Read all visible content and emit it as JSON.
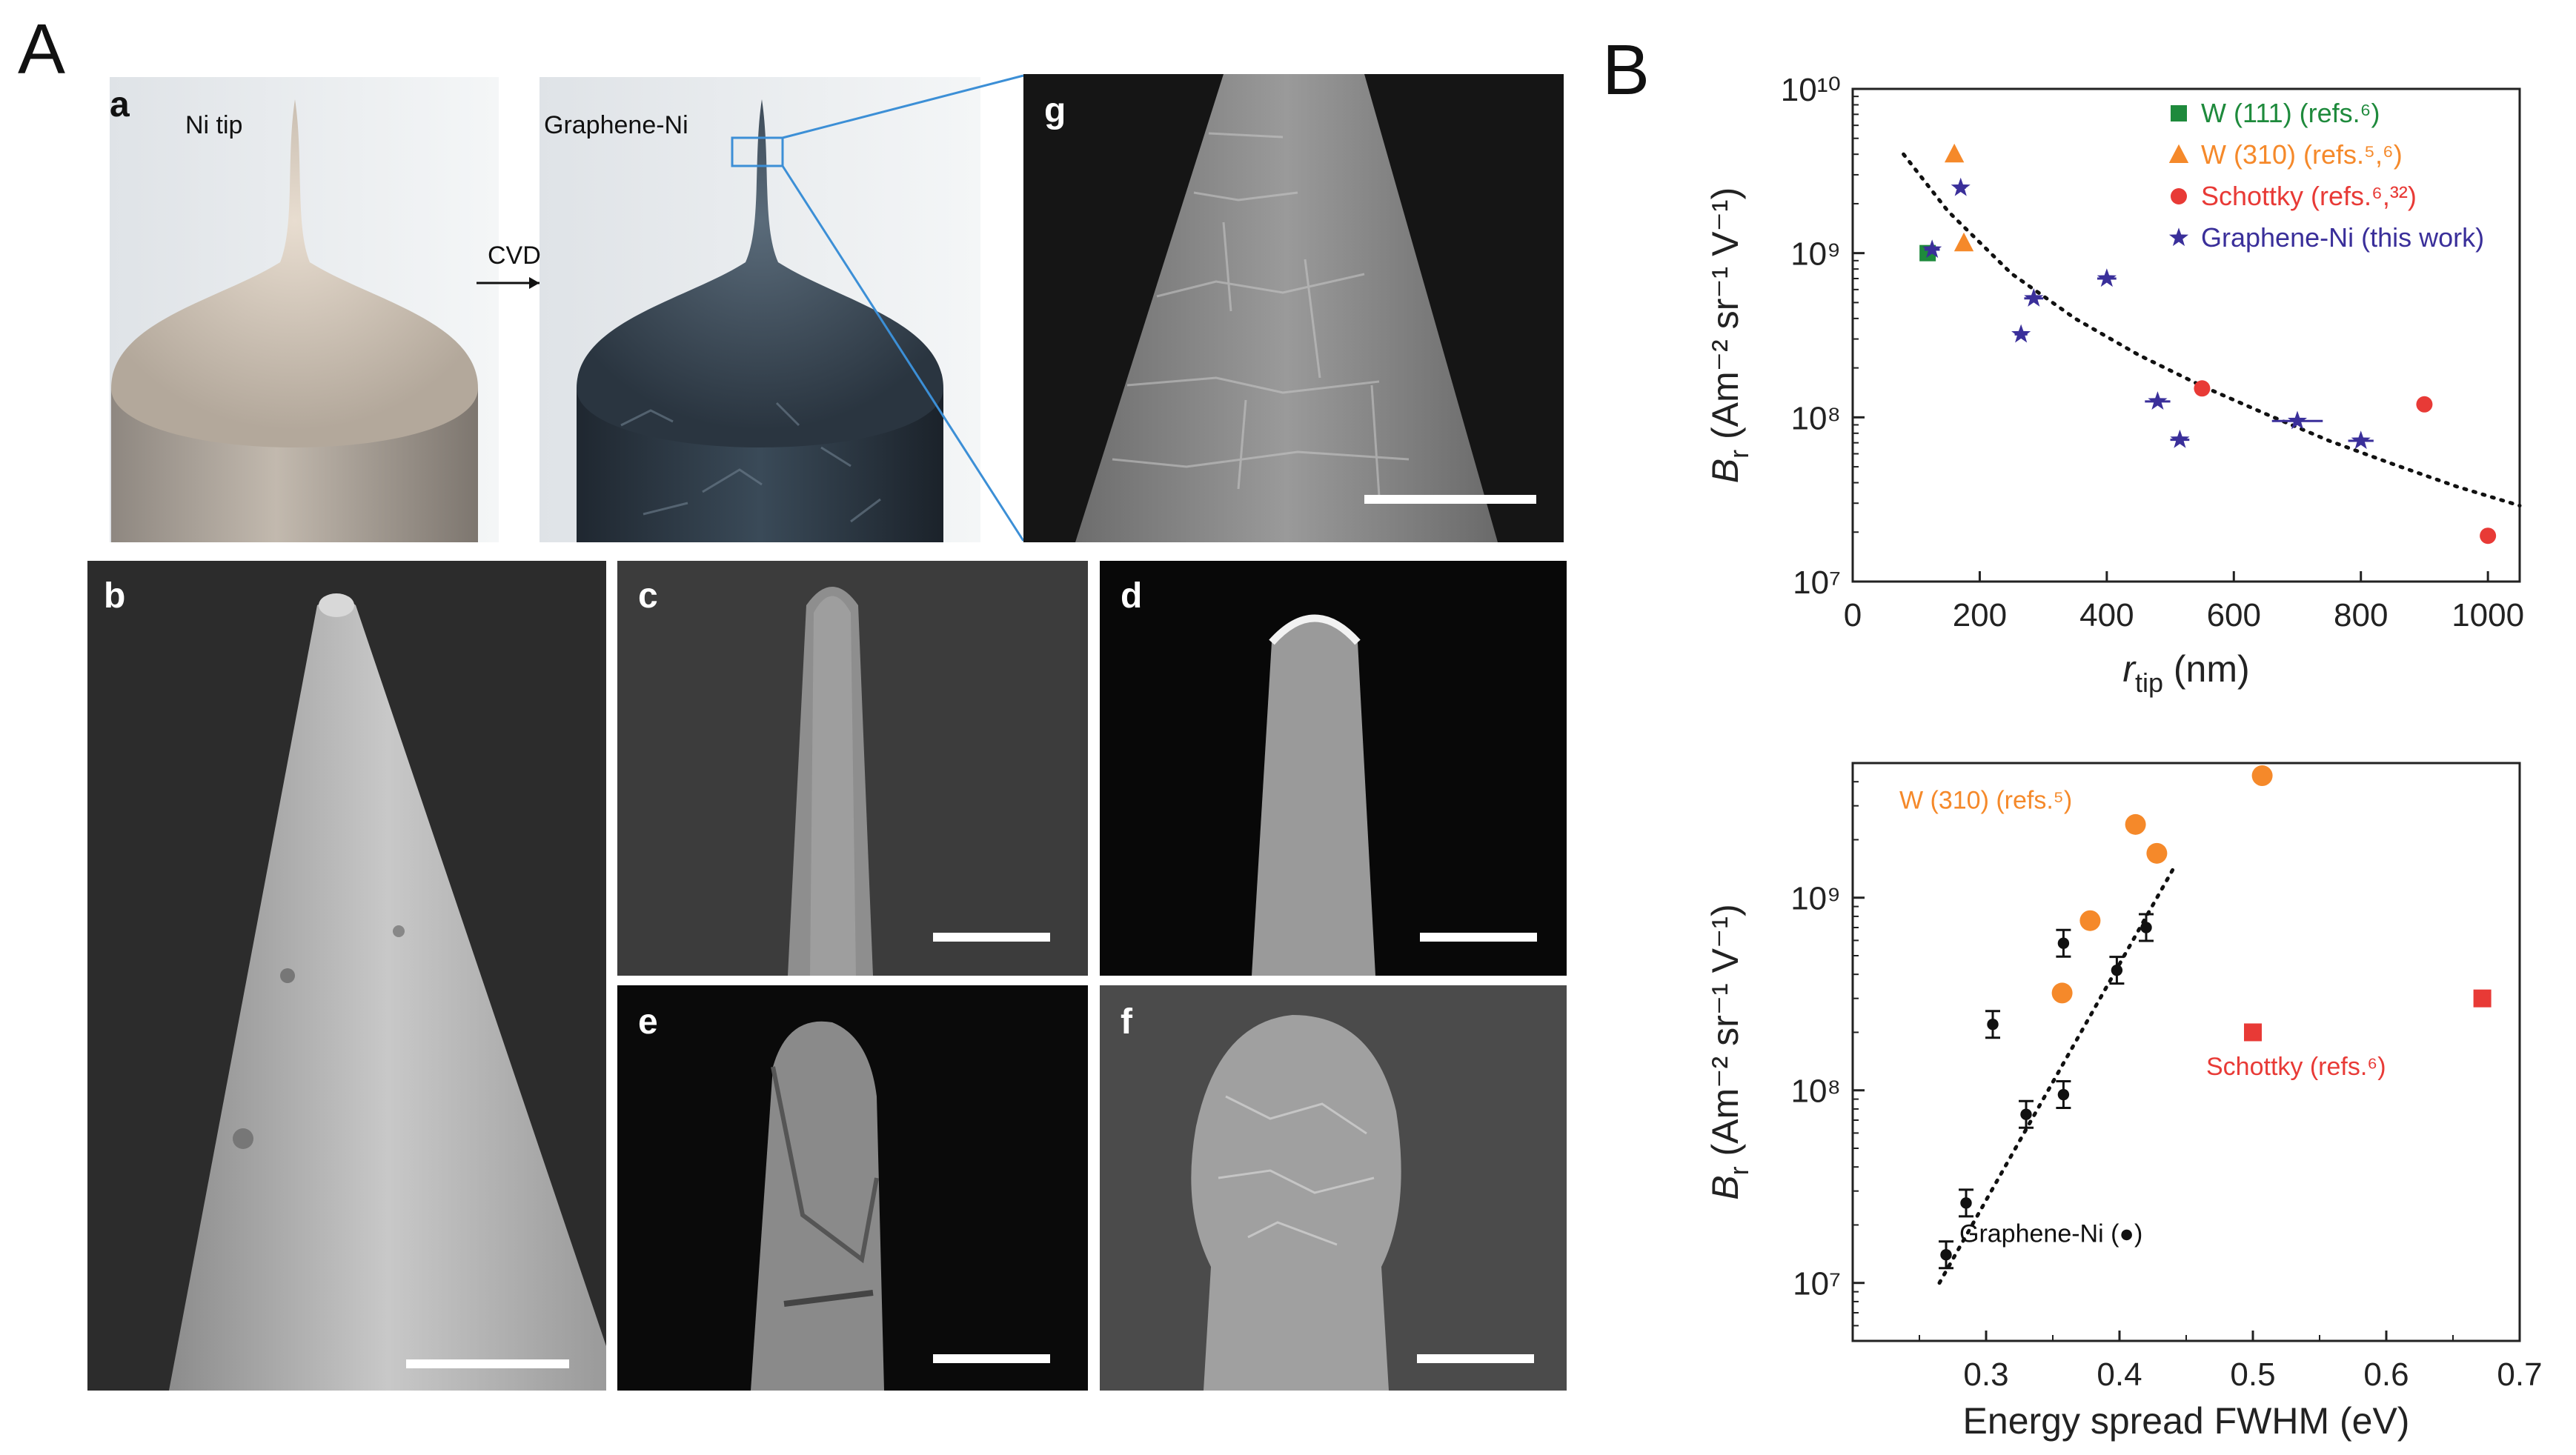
{
  "figure": {
    "label_A": "A",
    "label_B": "B"
  },
  "panel_a": {
    "label": "a",
    "ni_tip": "Ni tip",
    "graphene_ni": "Graphene-Ni",
    "cvd": "CVD"
  },
  "panel_labels": {
    "b": "b",
    "c": "c",
    "d": "d",
    "e": "e",
    "f": "f",
    "g": "g"
  },
  "colors": {
    "w111": "#1e8a3c",
    "w310": "#f5892a",
    "schottky": "#e83a36",
    "graphene": "#3a2f9a",
    "sem_bg": "#2d2d2d",
    "render_bg": "#eceef0"
  },
  "chart_data": [
    {
      "type": "scatter",
      "title": "",
      "xlabel": "r",
      "xlabel_sub": "tip",
      "xlabel_unit": "(nm)",
      "ylabel": "B",
      "ylabel_sub": "r",
      "ylabel_unit": "(Am⁻² sr⁻¹ V⁻¹)",
      "xlim": [
        0,
        1050
      ],
      "ylim": [
        10000000,
        10000000000
      ],
      "yscale": "log",
      "x_ticks": [
        "0",
        "200",
        "400",
        "600",
        "800",
        "1000"
      ],
      "y_ticks": [
        "10⁷",
        "10⁸",
        "10⁹",
        "10¹⁰"
      ],
      "legend_position": "top-right",
      "series": [
        {
          "name": "W (111) (refs.⁶)",
          "marker": "square",
          "color": "#1e8a3c",
          "points": [
            [
              118,
              1000000000
            ]
          ]
        },
        {
          "name": "W (310) (refs.⁵,⁶)",
          "marker": "triangle",
          "color": "#f5892a",
          "points": [
            [
              160,
              4000000000
            ],
            [
              175,
              1150000000
            ]
          ]
        },
        {
          "name": "Schottky (refs.⁶,³²)",
          "marker": "circle",
          "color": "#e83a36",
          "points": [
            [
              550,
              150000000
            ],
            [
              900,
              120000000
            ],
            [
              1000,
              19000000
            ]
          ]
        },
        {
          "name": "Graphene-Ni (this work)",
          "marker": "star",
          "color": "#3a2f9a",
          "points": [
            [
              125,
              1050000000,
              12
            ],
            [
              170,
              2500000000,
              8
            ],
            [
              285,
              530000000,
              15
            ],
            [
              265,
              320000000,
              10
            ],
            [
              400,
              700000000,
              15
            ],
            [
              480,
              125000000,
              20
            ],
            [
              515,
              73000000,
              15
            ],
            [
              700,
              95000000,
              40
            ],
            [
              800,
              72000000,
              20
            ]
          ]
        }
      ],
      "fit_curve": [
        [
          80,
          4000000000
        ],
        [
          150,
          1800000000
        ],
        [
          250,
          750000000
        ],
        [
          350,
          400000000
        ],
        [
          450,
          240000000
        ],
        [
          550,
          155000000
        ],
        [
          650,
          105000000
        ],
        [
          750,
          72000000
        ],
        [
          850,
          52000000
        ],
        [
          950,
          38000000
        ],
        [
          1050,
          29000000
        ]
      ]
    },
    {
      "type": "scatter",
      "title": "",
      "xlabel": "Energy spread FWHM (eV)",
      "ylabel": "B",
      "ylabel_sub": "r",
      "ylabel_unit": "(Am⁻² sr⁻¹ V⁻¹)",
      "xlim": [
        0.2,
        0.7
      ],
      "ylim": [
        5000000,
        5000000000
      ],
      "yscale": "log",
      "x_ticks": [
        "0.3",
        "0.4",
        "0.5",
        "0.6",
        "0.7"
      ],
      "y_ticks": [
        "10⁷",
        "10⁸",
        "10⁹"
      ],
      "series": [
        {
          "name": "Graphene-Ni (●)",
          "marker": "dot",
          "color": "#111111",
          "points": [
            [
              0.27,
              14000000
            ],
            [
              0.285,
              26000000
            ],
            [
              0.305,
              220000000
            ],
            [
              0.33,
              75000000
            ],
            [
              0.358,
              95000000
            ],
            [
              0.358,
              580000000
            ],
            [
              0.398,
              420000000
            ],
            [
              0.42,
              700000000
            ]
          ]
        },
        {
          "name": "W (310) (refs.⁵)",
          "marker": "circle",
          "color": "#f5892a",
          "points": [
            [
              0.357,
              320000000
            ],
            [
              0.378,
              760000000
            ],
            [
              0.412,
              2400000000
            ],
            [
              0.428,
              1700000000
            ],
            [
              0.507,
              4300000000
            ]
          ]
        },
        {
          "name": "Schottky (refs.⁶)",
          "marker": "square",
          "color": "#e83a36",
          "points": [
            [
              0.5,
              200000000
            ],
            [
              0.672,
              300000000
            ]
          ]
        }
      ],
      "fit_line": [
        [
          0.265,
          10000000
        ],
        [
          0.44,
          1400000000
        ]
      ]
    }
  ]
}
